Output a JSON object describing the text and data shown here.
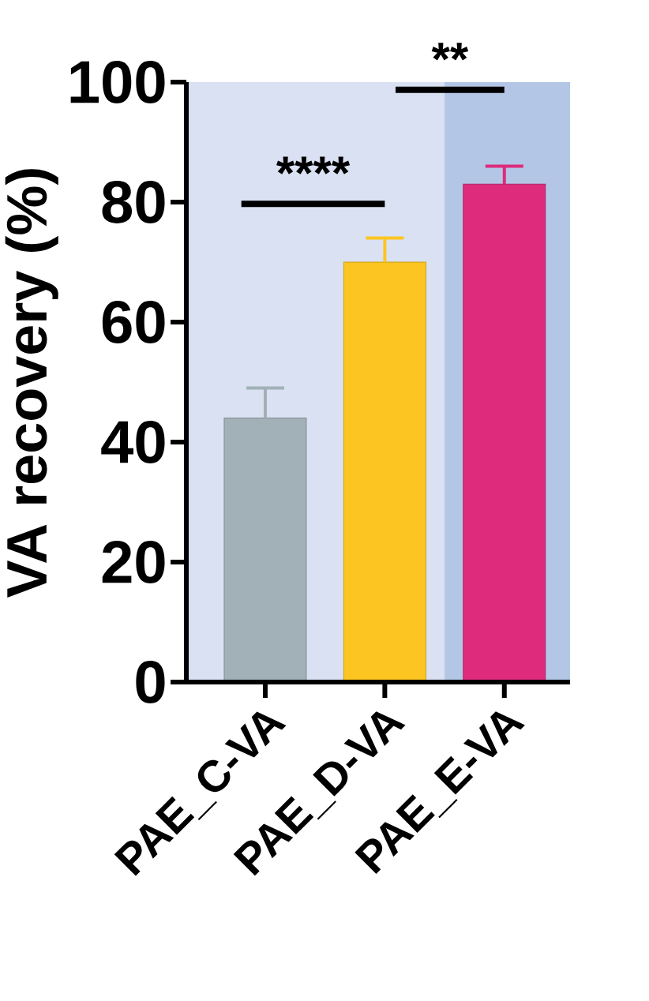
{
  "chart_data": {
    "type": "bar",
    "ylabel": "VA recovery (%)",
    "categories": [
      "PAE_C-VA",
      "PAE_D-VA",
      "PAE_E-VA"
    ],
    "values": [
      44,
      70,
      83
    ],
    "errors": [
      5,
      4,
      3
    ],
    "colors": [
      "#a2b0b7",
      "#fdc521",
      "#de2b7b"
    ],
    "ylim": [
      0,
      100
    ],
    "yticks": [
      0,
      20,
      40,
      60,
      80,
      100
    ],
    "bands": [
      {
        "axis": "x",
        "from": "PAE_E-VA",
        "to": "PAE_E-VA",
        "color": "#b3c6e6"
      }
    ],
    "annotations": [
      "****",
      "**"
    ]
  }
}
